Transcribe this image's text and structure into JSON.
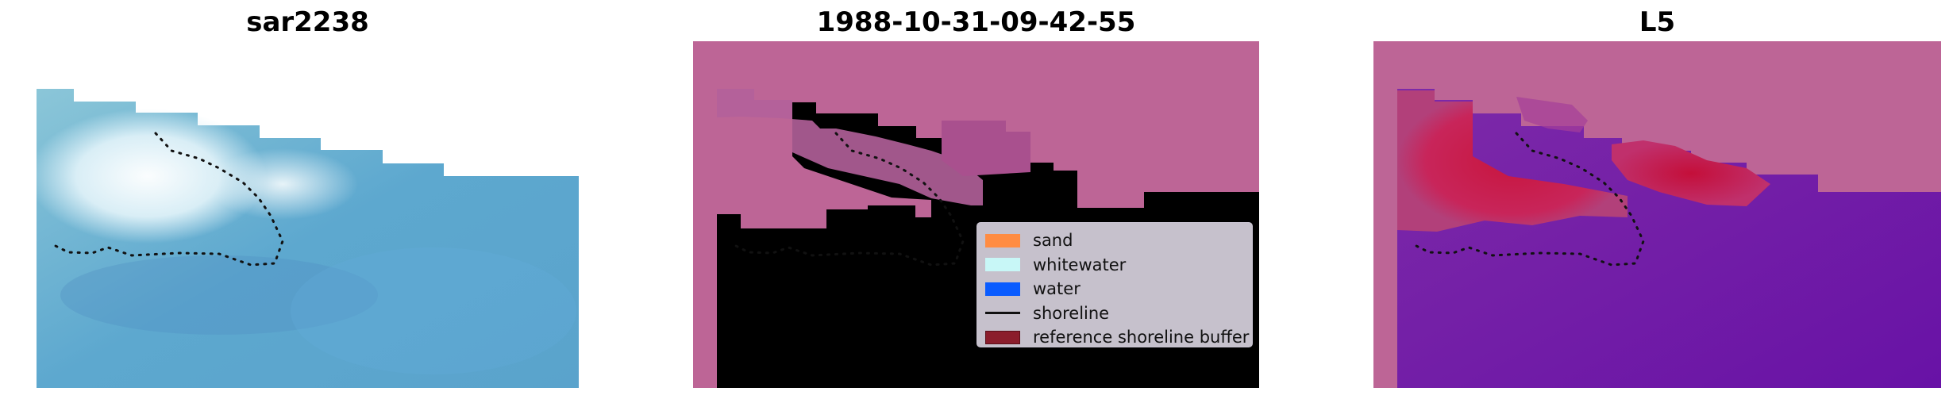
{
  "panels": [
    {
      "title": "sar2238"
    },
    {
      "title": "1988-10-31-09-42-55"
    },
    {
      "title": "L5"
    }
  ],
  "legend": {
    "items": [
      {
        "label": "sand",
        "color": "#ff8c42",
        "kind": "patch"
      },
      {
        "label": "whitewater",
        "color": "#c8f7f7",
        "kind": "patch"
      },
      {
        "label": "water",
        "color": "#0a5cff",
        "kind": "patch"
      },
      {
        "label": "shoreline",
        "color": "#111111",
        "kind": "line"
      },
      {
        "label": "reference shoreline buffer",
        "color": "#8b1d2c",
        "kind": "patch"
      }
    ]
  },
  "colors": {
    "rgb_water": "#5aa2cc",
    "rgb_foam": "#f2fafd",
    "class_land": "#bd6596",
    "class_water": "#55259a",
    "class_buffer": "#b2609a",
    "index_red": "#c4153f",
    "index_purple": "#6a12a8"
  }
}
